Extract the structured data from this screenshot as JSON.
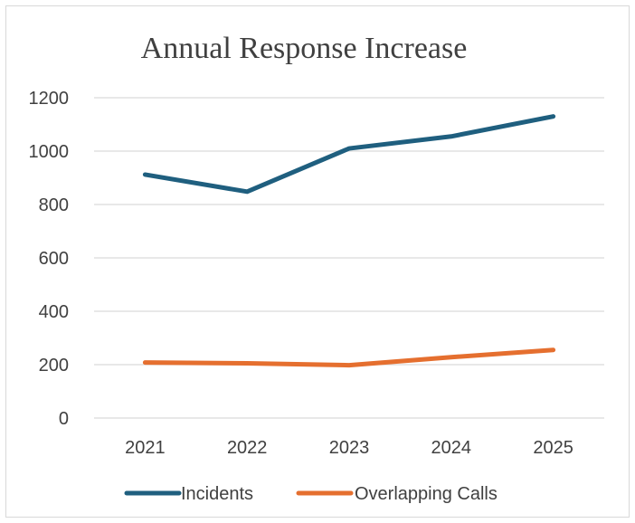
{
  "chart_data": {
    "type": "line",
    "title": "Annual Response Increase",
    "xlabel": "",
    "ylabel": "",
    "x": [
      "2021",
      "2022",
      "2023",
      "2024",
      "2025"
    ],
    "ylim": [
      0,
      1200
    ],
    "yticks": [
      0,
      200,
      400,
      600,
      800,
      1000,
      1200
    ],
    "grid": true,
    "legend": "bottom",
    "series": [
      {
        "name": "Incidents",
        "color": "#1f5f7f",
        "values": [
          912,
          848,
          1010,
          1055,
          1130
        ]
      },
      {
        "name": "Overlapping Calls",
        "color": "#e56f2f",
        "values": [
          208,
          205,
          198,
          228,
          255
        ]
      }
    ]
  }
}
